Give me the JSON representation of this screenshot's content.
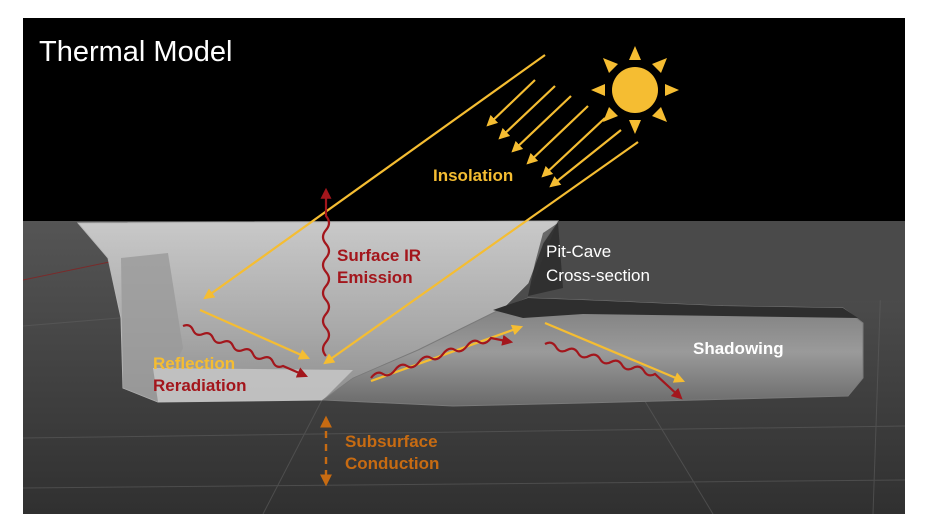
{
  "title": "Thermal Model",
  "labels": {
    "insolation": "Insolation",
    "surface_ir_line1": "Surface IR",
    "surface_ir_line2": "Emission",
    "pit_cave_line1": "Pit-Cave",
    "pit_cave_line2": "Cross-section",
    "shadowing": "Shadowing",
    "reflection": "Reflection",
    "reradiation": "Reradiation",
    "subsurface_line1": "Subsurface",
    "subsurface_line2": "Conduction"
  },
  "colors": {
    "background": "#000000",
    "ground": "#4a4a4a",
    "insolation_yellow": "#f5bd32",
    "ir_red": "#a3161c",
    "conduction_orange": "#c76b12",
    "label_white": "#ffffff",
    "sun": "#f5bd32"
  },
  "icons": [
    "sun-icon"
  ]
}
